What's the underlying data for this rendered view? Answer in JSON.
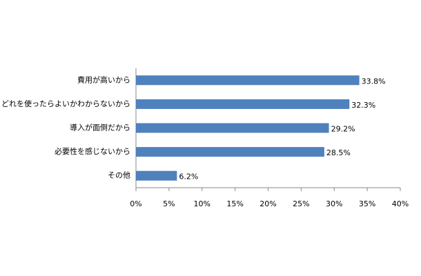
{
  "chart_data": {
    "type": "bar",
    "orientation": "horizontal",
    "categories": [
      "費用が高いから",
      "どれを使ったらよいかわからないから",
      "導入が面倒だから",
      "必要性を感じないから",
      "その他"
    ],
    "values": [
      33.8,
      32.3,
      29.2,
      28.5,
      6.2
    ],
    "value_labels": [
      "33.8%",
      "32.3%",
      "29.2%",
      "28.5%",
      "6.2%"
    ],
    "color": "#4f81bd",
    "xlim": [
      0,
      40
    ],
    "xticks": [
      {
        "value": 0,
        "label": "0%"
      },
      {
        "value": 5,
        "label": "5%"
      },
      {
        "value": 10,
        "label": "10%"
      },
      {
        "value": 15,
        "label": "15%"
      },
      {
        "value": 20,
        "label": "20%"
      },
      {
        "value": 25,
        "label": "25%"
      },
      {
        "value": 30,
        "label": "30%"
      },
      {
        "value": 35,
        "label": "35%"
      },
      {
        "value": 40,
        "label": "40%"
      }
    ],
    "grid": false
  }
}
